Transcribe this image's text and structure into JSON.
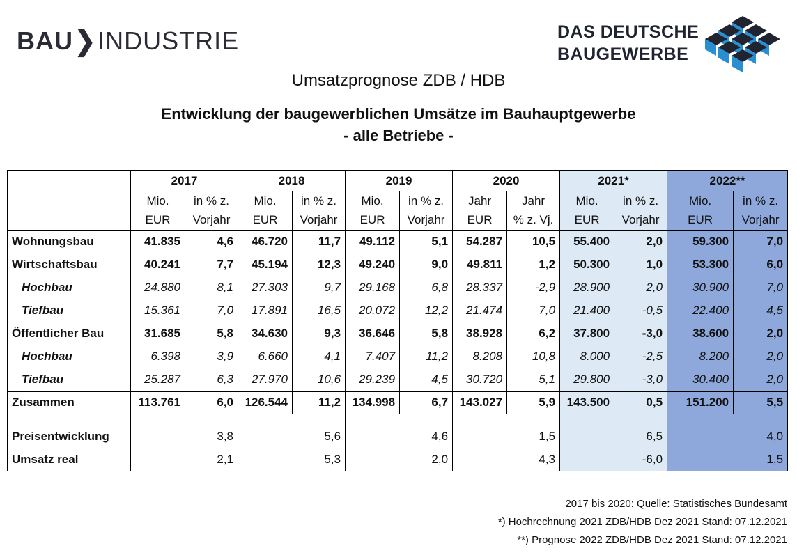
{
  "logo_left": {
    "bau": "BAU",
    "chev": "❯",
    "rest": "INDUSTRIE"
  },
  "logo_right": {
    "line1": "DAS DEUTSCHE",
    "line2": "BAUGEWERBE"
  },
  "subtitle": "Umsatzprognose ZDB / HDB",
  "title_line1": "Entwicklung der baugewerblichen Umsätze im Bauhauptgewerbe",
  "title_line2": "- alle Betriebe -",
  "years": [
    "2017",
    "2018",
    "2019",
    "2020",
    "2021*",
    "2022**"
  ],
  "sub1": [
    "Mio.",
    "in % z.",
    "Mio.",
    "in % z.",
    "Mio.",
    "in % z.",
    "Jahr",
    "Jahr",
    "Mio.",
    "in % z.",
    "Mio.",
    "in % z."
  ],
  "sub2": [
    "EUR",
    "Vorjahr",
    "EUR",
    "Vorjahr",
    "EUR",
    "Vorjahr",
    "EUR",
    "% z. Vj.",
    "EUR",
    "Vorjahr",
    "EUR",
    "Vorjahr"
  ],
  "rows": [
    {
      "label": "Wohnungsbau",
      "v": [
        "41.835",
        "4,6",
        "46.720",
        "11,7",
        "49.112",
        "5,1",
        "54.287",
        "10,5",
        "55.400",
        "2,0",
        "59.300",
        "7,0"
      ]
    },
    {
      "label": "Wirtschaftsbau",
      "v": [
        "40.241",
        "7,7",
        "45.194",
        "12,3",
        "49.240",
        "9,0",
        "49.811",
        "1,2",
        "50.300",
        "1,0",
        "53.300",
        "6,0"
      ]
    },
    {
      "label": "Hochbau",
      "v": [
        "24.880",
        "8,1",
        "27.303",
        "9,7",
        "29.168",
        "6,8",
        "28.337",
        "-2,9",
        "28.900",
        "2,0",
        "30.900",
        "7,0"
      ]
    },
    {
      "label": "Tiefbau",
      "v": [
        "15.361",
        "7,0",
        "17.891",
        "16,5",
        "20.072",
        "12,2",
        "21.474",
        "7,0",
        "21.400",
        "-0,5",
        "22.400",
        "4,5"
      ]
    },
    {
      "label": "Öffentlicher Bau",
      "v": [
        "31.685",
        "5,8",
        "34.630",
        "9,3",
        "36.646",
        "5,8",
        "38.928",
        "6,2",
        "37.800",
        "-3,0",
        "38.600",
        "2,0"
      ]
    },
    {
      "label": "Hochbau",
      "v": [
        "6.398",
        "3,9",
        "6.660",
        "4,1",
        "7.407",
        "11,2",
        "8.208",
        "10,8",
        "8.000",
        "-2,5",
        "8.200",
        "2,0"
      ]
    },
    {
      "label": "Tiefbau",
      "v": [
        "25.287",
        "6,3",
        "27.970",
        "10,6",
        "29.239",
        "4,5",
        "30.720",
        "5,1",
        "29.800",
        "-3,0",
        "30.400",
        "2,0"
      ]
    },
    {
      "label": "Zusammen",
      "v": [
        "113.761",
        "6,0",
        "126.544",
        "11,2",
        "134.998",
        "6,7",
        "143.027",
        "5,9",
        "143.500",
        "0,5",
        "151.200",
        "5,5"
      ]
    }
  ],
  "bottom_rows": [
    {
      "label": "Preisentwicklung",
      "v": [
        "3,8",
        "5,6",
        "4,6",
        "1,5",
        "6,5",
        "4,0"
      ]
    },
    {
      "label": "Umsatz real",
      "v": [
        "2,1",
        "5,3",
        "2,0",
        "4,3",
        "-6,0",
        "1,5"
      ]
    }
  ],
  "footer": [
    "2017 bis 2020: Quelle: Statistisches Bundesamt",
    "*) Hochrechnung 2021 ZDB/HDB Dez 2021 Stand: 07.12.2021",
    "**) Prognose 2022 ZDB/HDB Dez 2021 Stand: 07.12.2021"
  ],
  "colors": {
    "col2021": "#dde9f5",
    "col2022": "#8ea8dc",
    "cube_dark": "#1f2430",
    "cube_blue": "#2a8fd0"
  }
}
